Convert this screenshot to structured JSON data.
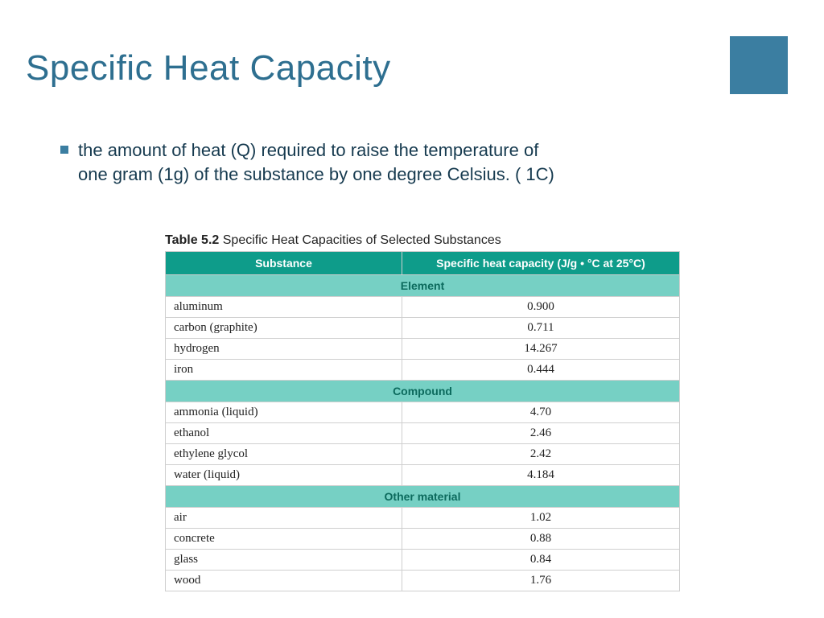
{
  "colors": {
    "accent": "#3b7ea1",
    "title": "#2e6f90",
    "bullet_text": "#163a4f",
    "table_header_bg": "#0e9c8a",
    "table_section_bg": "#76d0c4",
    "table_section_text": "#0c6a5d",
    "border": "#cfcfcf"
  },
  "title": "Specific Heat Capacity",
  "bullet": "the amount of heat (Q) required to raise the temperature of one gram (1g)  of the substance by one degree Celsius. ( 1C)",
  "table": {
    "caption_label": "Table 5.2",
    "caption_text": "Specific Heat Capacities of Selected Substances",
    "columns": [
      "Substance",
      "Specific heat capacity (J/g • °C at 25°C)"
    ],
    "sections": [
      {
        "name": "Element",
        "rows": [
          [
            "aluminum",
            "0.900"
          ],
          [
            "carbon (graphite)",
            "0.711"
          ],
          [
            "hydrogen",
            "14.267"
          ],
          [
            "iron",
            "0.444"
          ]
        ]
      },
      {
        "name": "Compound",
        "rows": [
          [
            "ammonia (liquid)",
            "4.70"
          ],
          [
            "ethanol",
            "2.46"
          ],
          [
            "ethylene glycol",
            "2.42"
          ],
          [
            "water (liquid)",
            "4.184"
          ]
        ]
      },
      {
        "name": "Other material",
        "rows": [
          [
            "air",
            "1.02"
          ],
          [
            "concrete",
            "0.88"
          ],
          [
            "glass",
            "0.84"
          ],
          [
            "wood",
            "1.76"
          ]
        ]
      }
    ]
  }
}
